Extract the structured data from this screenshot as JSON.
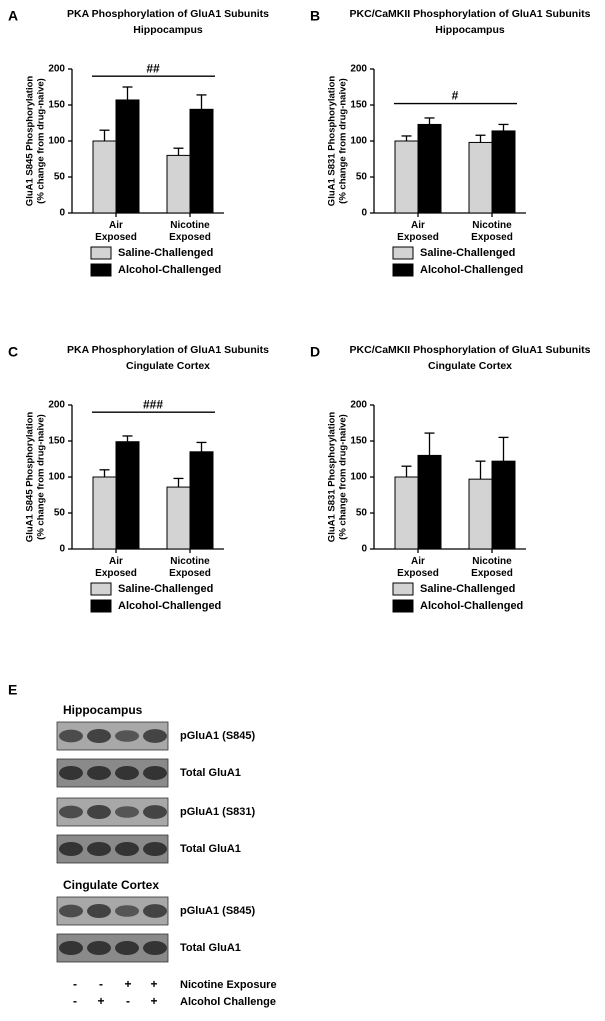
{
  "chart_data": [
    {
      "type": "bar",
      "panel": "A",
      "title": "PKA Phosphorylation of GluA1 Subunits",
      "subtitle": "Hippocampus",
      "ylabel": [
        "GluA1 S845 Phosphorylation",
        "(% change from drug-naive)"
      ],
      "categories": [
        "Air Exposed",
        "Nicotine Exposed"
      ],
      "series": [
        {
          "name": "Saline-Challenged",
          "color": "#d3d3d3",
          "values": [
            100,
            80
          ],
          "errors": [
            15,
            10
          ]
        },
        {
          "name": "Alcohol-Challenged",
          "color": "#000000",
          "values": [
            157,
            144
          ],
          "errors": [
            18,
            20
          ]
        }
      ],
      "ylim": [
        0,
        200
      ],
      "yticks": [
        0,
        50,
        100,
        150,
        200
      ],
      "annotation": {
        "text": "##",
        "y": 190
      }
    },
    {
      "type": "bar",
      "panel": "B",
      "title": "PKC/CaMKII Phosphorylation of GluA1 Subunits",
      "subtitle": "Hippocampus",
      "ylabel": [
        "GluA1 S831 Phosphorylation",
        "(% change from drug-naive)"
      ],
      "categories": [
        "Air Exposed",
        "Nicotine Exposed"
      ],
      "series": [
        {
          "name": "Saline-Challenged",
          "color": "#d3d3d3",
          "values": [
            100,
            98
          ],
          "errors": [
            7,
            10
          ]
        },
        {
          "name": "Alcohol-Challenged",
          "color": "#000000",
          "values": [
            123,
            114
          ],
          "errors": [
            9,
            9
          ]
        }
      ],
      "ylim": [
        0,
        200
      ],
      "yticks": [
        0,
        50,
        100,
        150,
        200
      ],
      "annotation": {
        "text": "#",
        "y": 152
      }
    },
    {
      "type": "bar",
      "panel": "C",
      "title": "PKA Phosphorylation of GluA1 Subunits",
      "subtitle": "Cingulate Cortex",
      "ylabel": [
        "GluA1 S845 Phosphorylation",
        "(% change from drug-naive)"
      ],
      "categories": [
        "Air Exposed",
        "Nicotine Exposed"
      ],
      "series": [
        {
          "name": "Saline-Challenged",
          "color": "#d3d3d3",
          "values": [
            100,
            86
          ],
          "errors": [
            10,
            12
          ]
        },
        {
          "name": "Alcohol-Challenged",
          "color": "#000000",
          "values": [
            149,
            135
          ],
          "errors": [
            8,
            13
          ]
        }
      ],
      "ylim": [
        0,
        200
      ],
      "yticks": [
        0,
        50,
        100,
        150,
        200
      ],
      "annotation": {
        "text": "###",
        "y": 190
      }
    },
    {
      "type": "bar",
      "panel": "D",
      "title": "PKC/CaMKII Phosphorylation of GluA1 Subunits",
      "subtitle": "Cingulate Cortex",
      "ylabel": [
        "GluA1 S831 Phosphorylation",
        "(% change from drug-naive)"
      ],
      "categories": [
        "Air Exposed",
        "Nicotine Exposed"
      ],
      "series": [
        {
          "name": "Saline-Challenged",
          "color": "#d3d3d3",
          "values": [
            100,
            97
          ],
          "errors": [
            15,
            25
          ]
        },
        {
          "name": "Alcohol-Challenged",
          "color": "#000000",
          "values": [
            130,
            122
          ],
          "errors": [
            31,
            33
          ]
        }
      ],
      "ylim": [
        0,
        200
      ],
      "yticks": [
        0,
        50,
        100,
        150,
        200
      ]
    }
  ],
  "panel_e": {
    "label": "E",
    "sections": [
      {
        "title": "Hippocampus",
        "rows": [
          "pGluA1 (S845)",
          "Total GluA1",
          "pGluA1 (S831)",
          "Total GluA1"
        ]
      },
      {
        "title": "Cingulate Cortex",
        "rows": [
          "pGluA1 (S845)",
          "Total GluA1"
        ]
      }
    ],
    "conditions": [
      {
        "name": "Nicotine Exposure",
        "signs": [
          "-",
          "-",
          "+",
          "+"
        ]
      },
      {
        "name": "Alcohol Challenge",
        "signs": [
          "-",
          "+",
          "-",
          "+"
        ]
      }
    ]
  }
}
